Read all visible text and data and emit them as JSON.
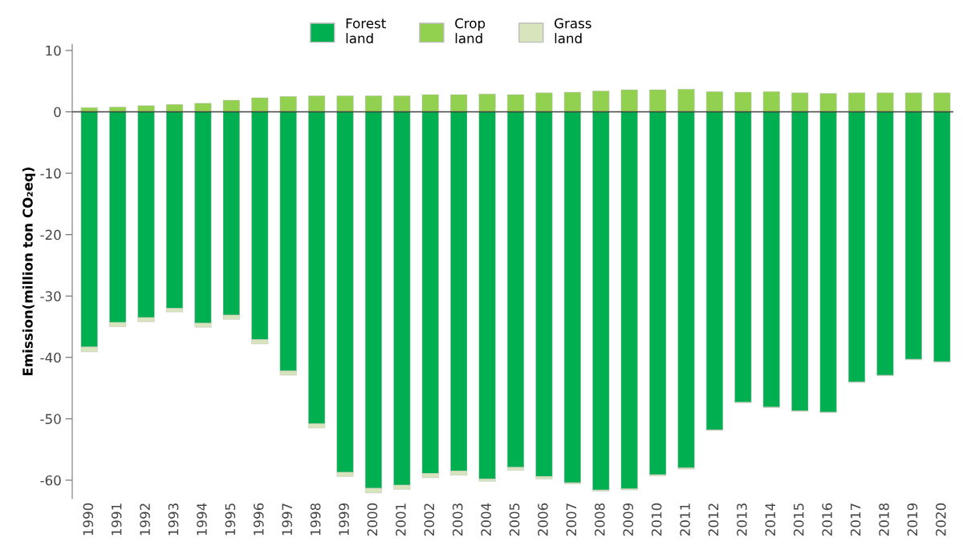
{
  "chart_data": {
    "type": "bar",
    "stacked": true,
    "ylabel": "Emission(million ton CO₂eq)",
    "categories": [
      "1990",
      "1991",
      "1992",
      "1993",
      "1994",
      "1995",
      "1996",
      "1997",
      "1998",
      "1999",
      "2000",
      "2001",
      "2002",
      "2003",
      "2004",
      "2005",
      "2006",
      "2007",
      "2008",
      "2009",
      "2010",
      "2011",
      "2012",
      "2013",
      "2014",
      "2015",
      "2016",
      "2017",
      "2018",
      "2019",
      "2020"
    ],
    "series": [
      {
        "name": "Forest\nland",
        "color": "#00b050",
        "values": [
          -38.3,
          -34.3,
          -33.5,
          -32.0,
          -34.4,
          -33.1,
          -37.1,
          -42.2,
          -50.8,
          -58.7,
          -61.3,
          -60.8,
          -58.9,
          -58.5,
          -59.8,
          -57.9,
          -59.4,
          -60.4,
          -61.6,
          -61.4,
          -59.1,
          -58.0,
          -51.8,
          -47.3,
          -48.1,
          -48.7,
          -48.9,
          -44.0,
          -42.9,
          -40.3,
          -40.7
        ]
      },
      {
        "name": "Crop\nland",
        "color": "#92d050",
        "values": [
          0.7,
          0.8,
          1.0,
          1.2,
          1.4,
          1.9,
          2.3,
          2.5,
          2.6,
          2.6,
          2.6,
          2.6,
          2.8,
          2.8,
          2.9,
          2.8,
          3.1,
          3.2,
          3.4,
          3.6,
          3.6,
          3.7,
          3.3,
          3.2,
          3.3,
          3.1,
          3.0,
          3.1,
          3.1,
          3.1,
          3.1
        ]
      },
      {
        "name": "Grass\nland",
        "color": "#d8e4bc",
        "values": [
          -0.8,
          -0.7,
          -0.7,
          -0.6,
          -0.7,
          -0.7,
          -0.7,
          -0.7,
          -0.7,
          -0.7,
          -0.8,
          -0.7,
          -0.7,
          -0.7,
          -0.4,
          -0.5,
          -0.4,
          -0.2,
          -0.2,
          -0.2,
          -0.2,
          -0.2,
          -0.1,
          -0.1,
          -0.1,
          -0.1,
          -0.1,
          -0.1,
          -0.1,
          -0.1,
          -0.1
        ]
      }
    ],
    "ylim": [
      -63,
      11
    ],
    "yticks": [
      -60,
      -50,
      -40,
      -30,
      -20,
      -10,
      0,
      10
    ],
    "ref_lines": [
      {
        "axis": "y",
        "value": 0,
        "color": "#404040"
      }
    ],
    "grid": false,
    "legend": "top"
  }
}
